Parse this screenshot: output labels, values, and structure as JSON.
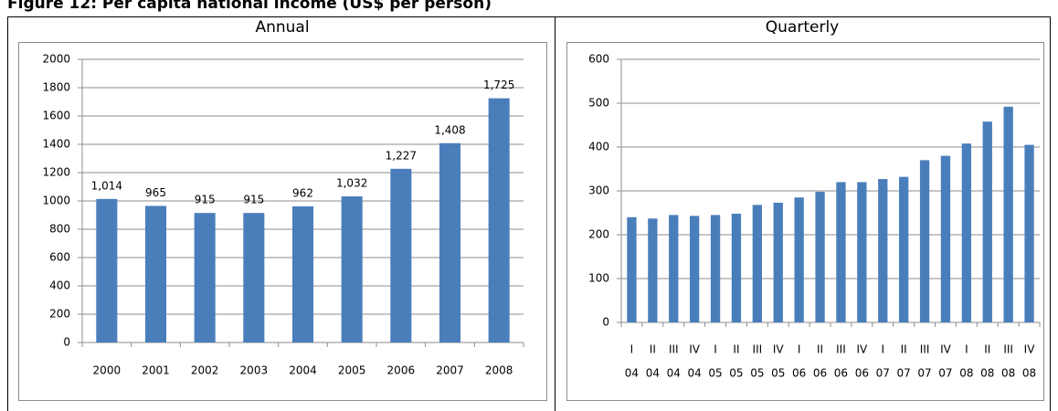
{
  "figure_title": "Figure 12: Per capita national income (US$ per person)",
  "chart_data": [
    {
      "type": "bar",
      "title": "Annual",
      "categories": [
        "2000",
        "2001",
        "2002",
        "2003",
        "2004",
        "2005",
        "2006",
        "2007",
        "2008"
      ],
      "values": [
        1014,
        965,
        915,
        915,
        962,
        1032,
        1227,
        1408,
        1725
      ],
      "value_labels": [
        "1,014",
        "965",
        "915",
        "915",
        "962",
        "1,032",
        "1,227",
        "1,408",
        "1,725"
      ],
      "color": "#4a7ebb",
      "ylim": [
        0,
        2000
      ],
      "yticks": [
        0,
        200,
        400,
        600,
        800,
        1000,
        1200,
        1400,
        1600,
        1800,
        2000
      ],
      "grid": true
    },
    {
      "type": "bar",
      "title": "Quarterly",
      "categories": [
        [
          "I",
          "04"
        ],
        [
          "II",
          "04"
        ],
        [
          "III",
          "04"
        ],
        [
          "IV",
          "04"
        ],
        [
          "I",
          "05"
        ],
        [
          "II",
          "05"
        ],
        [
          "III",
          "05"
        ],
        [
          "IV",
          "05"
        ],
        [
          "I",
          "06"
        ],
        [
          "II",
          "06"
        ],
        [
          "III",
          "06"
        ],
        [
          "IV",
          "06"
        ],
        [
          "I",
          "07"
        ],
        [
          "II",
          "07"
        ],
        [
          "III",
          "07"
        ],
        [
          "IV",
          "07"
        ],
        [
          "I",
          "08"
        ],
        [
          "II",
          "08"
        ],
        [
          "III",
          "08"
        ],
        [
          "IV",
          "08"
        ]
      ],
      "values": [
        240,
        237,
        245,
        243,
        245,
        248,
        268,
        273,
        285,
        298,
        320,
        320,
        327,
        332,
        370,
        380,
        408,
        458,
        492,
        405
      ],
      "color": "#4a7ebb",
      "ylim": [
        0,
        600
      ],
      "yticks": [
        0,
        100,
        200,
        300,
        400,
        500,
        600
      ],
      "grid": true
    }
  ]
}
